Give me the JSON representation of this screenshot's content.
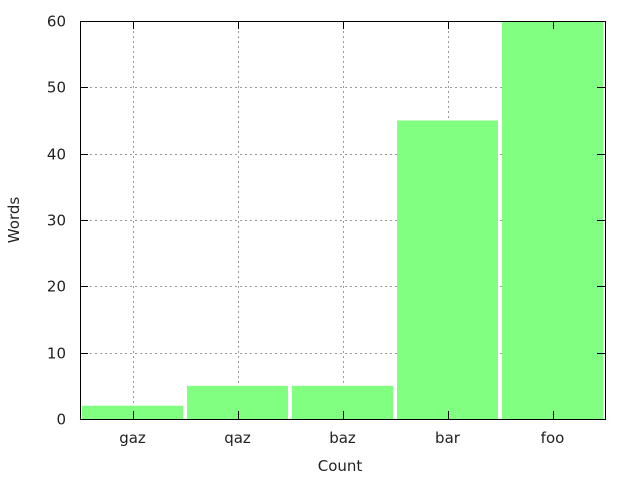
{
  "chart_data": {
    "type": "bar",
    "title": "",
    "xlabel": "Count",
    "ylabel": "Words",
    "categories": [
      "gaz",
      "qaz",
      "baz",
      "bar",
      "foo"
    ],
    "values": [
      2,
      5,
      5,
      45,
      60
    ],
    "ylim": [
      0,
      60
    ],
    "yticks": [
      "0",
      "10",
      "20",
      "30",
      "40",
      "50",
      "60"
    ],
    "grid": true,
    "legend": "none",
    "bar_color": "#80ff80"
  }
}
